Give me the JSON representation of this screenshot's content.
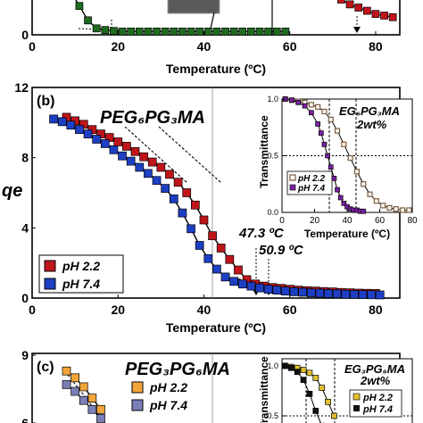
{
  "chart_data": [
    {
      "panel": "(a)",
      "type": "scatter",
      "xlabel": "Temperature (ºC)",
      "xlim": [
        0,
        85
      ],
      "ylim": [
        0,
        2.2
      ],
      "x_ticks": [
        "0",
        "20",
        "40",
        "60",
        "80"
      ],
      "y_ticks": [
        "0"
      ],
      "series": [
        {
          "color": "#1f6b1f",
          "x": [
            5,
            7,
            9,
            11,
            13,
            15,
            17,
            19,
            21,
            23,
            25,
            27,
            29,
            31,
            33,
            35,
            37,
            39,
            41,
            43,
            45,
            47,
            49,
            51,
            53,
            55,
            57,
            59
          ],
          "y": [
            2.2,
            1.8,
            1.35,
            0.9,
            0.45,
            0.2,
            0.15,
            0.12,
            0.1,
            0.1,
            0.1,
            0.1,
            0.1,
            0.1,
            0.1,
            0.1,
            0.1,
            0.1,
            0.1,
            0.1,
            0.1,
            0.1,
            0.1,
            0.1,
            0.1,
            0.1,
            0.1,
            0.1
          ]
        },
        {
          "color": "#c0141b",
          "x": [
            66,
            68,
            70,
            72,
            74,
            76,
            78,
            80,
            82,
            84
          ],
          "y": [
            1.9,
            1.6,
            1.35,
            1.1,
            0.95,
            0.85,
            0.75,
            0.65,
            0.6,
            0.55
          ]
        }
      ]
    },
    {
      "panel": "(b)",
      "type": "scatter",
      "title": "PEG₆PG₃MA",
      "xlabel": "Temperature (ºC)",
      "ylabel": "qe",
      "xlim": [
        0,
        85
      ],
      "ylim": [
        0,
        12
      ],
      "x_ticks": [
        "0",
        "20",
        "40",
        "60",
        "80"
      ],
      "y_ticks": [
        "0",
        "4",
        "8",
        "12"
      ],
      "legend": [
        "pH 2.2",
        "pH 7.4"
      ],
      "legend_position": "bottom-left",
      "annotations": [
        "47.3 ºC",
        "50.9 ºC"
      ],
      "series": [
        {
          "name": "pH 2.2",
          "color": "#c0141b",
          "x": [
            8,
            10,
            12,
            14,
            16,
            18,
            20,
            22,
            24,
            26,
            28,
            30,
            32,
            34,
            36,
            38,
            40,
            42,
            44,
            46,
            48,
            50,
            52,
            54,
            56,
            58,
            60,
            62,
            64,
            66,
            68,
            70,
            72,
            74,
            76,
            78,
            80
          ],
          "y": [
            10.3,
            10.1,
            9.9,
            9.6,
            9.35,
            9.15,
            8.9,
            8.65,
            8.35,
            8.05,
            7.75,
            7.45,
            7.05,
            6.6,
            6.0,
            5.3,
            4.45,
            3.55,
            2.85,
            2.2,
            1.6,
            1.05,
            0.8,
            0.68,
            0.6,
            0.55,
            0.5,
            0.45,
            0.42,
            0.4,
            0.37,
            0.35,
            0.32,
            0.3,
            0.28,
            0.27,
            0.26
          ]
        },
        {
          "name": "pH 7.4",
          "color": "#1d3fc4",
          "x": [
            5,
            7,
            9,
            11,
            13,
            15,
            17,
            19,
            21,
            23,
            25,
            27,
            29,
            31,
            33,
            35,
            37,
            39,
            41,
            43,
            45,
            47,
            49,
            51,
            53,
            55,
            57,
            59,
            61,
            63,
            65,
            67,
            69,
            71,
            73,
            75,
            77,
            79,
            81
          ],
          "y": [
            10.2,
            10.05,
            9.85,
            9.6,
            9.35,
            9.05,
            8.8,
            8.45,
            8.1,
            7.8,
            7.45,
            7.1,
            6.7,
            6.25,
            5.65,
            4.85,
            3.95,
            3.0,
            2.25,
            1.65,
            1.2,
            0.95,
            0.8,
            0.68,
            0.58,
            0.5,
            0.45,
            0.4,
            0.36,
            0.33,
            0.3,
            0.28,
            0.26,
            0.24,
            0.22,
            0.21,
            0.2,
            0.19,
            0.18
          ]
        }
      ]
    },
    {
      "panel": "(b) inset",
      "type": "scatter",
      "title": "EG₆PG₃MA",
      "subtitle": "2wt%",
      "xlabel": "Temperature (ºC)",
      "ylabel": "Transmittance",
      "xlim": [
        0,
        80
      ],
      "ylim": [
        0,
        1.0
      ],
      "x_ticks": [
        "0",
        "20",
        "40",
        "60",
        "80"
      ],
      "y_ticks": [
        "0.0",
        "0.5",
        "1.0"
      ],
      "legend": [
        "pH 2.2",
        "pH 7.4"
      ],
      "series": [
        {
          "name": "pH 2.2",
          "color": "#7a5a3a",
          "x": [
            2,
            6,
            10,
            14,
            18,
            22,
            26,
            30,
            34,
            38,
            42,
            46,
            50,
            54,
            58,
            62,
            66,
            70,
            74,
            78
          ],
          "y": [
            1.0,
            0.99,
            0.98,
            0.97,
            0.95,
            0.93,
            0.89,
            0.82,
            0.72,
            0.6,
            0.48,
            0.36,
            0.25,
            0.16,
            0.1,
            0.06,
            0.04,
            0.03,
            0.02,
            0.02
          ]
        },
        {
          "name": "pH 7.4",
          "color": "#7b1fa2",
          "x": [
            2,
            6,
            10,
            14,
            18,
            22,
            24,
            26,
            28,
            30,
            32,
            34,
            36,
            38,
            40,
            42,
            44,
            46,
            48,
            50
          ],
          "y": [
            1.0,
            0.99,
            0.97,
            0.94,
            0.88,
            0.78,
            0.7,
            0.6,
            0.5,
            0.4,
            0.3,
            0.2,
            0.13,
            0.08,
            0.05,
            0.03,
            0.02,
            0.02,
            0.01,
            0.01
          ]
        }
      ]
    },
    {
      "panel": "(c)",
      "type": "scatter",
      "title": "PEG₃PG₆MA",
      "ylim": [
        6,
        9
      ],
      "y_ticks": [
        "6",
        "9"
      ],
      "legend": [
        "pH 2.2",
        "pH 7.4"
      ],
      "series": [
        {
          "name": "pH 2.2",
          "color": "#f2a43a",
          "x": [
            8,
            10,
            12,
            14,
            16
          ],
          "y": [
            8.3,
            8.0,
            7.6,
            7.1,
            6.6
          ]
        },
        {
          "name": "pH 7.4",
          "color": "#7a7fb8",
          "x": [
            8,
            10,
            12,
            14,
            16
          ],
          "y": [
            7.7,
            7.4,
            7.0,
            6.6,
            6.2
          ]
        }
      ]
    },
    {
      "panel": "(c) inset",
      "type": "scatter",
      "title": "EG₃PG₆MA",
      "subtitle": "2wt%",
      "ylabel": "Transmittance",
      "y_ticks": [
        "0.5",
        "1.0"
      ],
      "legend": [
        "pH 2.2",
        "pH 7.4"
      ],
      "series": [
        {
          "name": "pH 2.2",
          "color": "#e0c030",
          "x": [
            2,
            6,
            10,
            14,
            18,
            22,
            26,
            30,
            34
          ],
          "y": [
            1.0,
            0.99,
            0.98,
            0.96,
            0.93,
            0.88,
            0.78,
            0.64,
            0.5
          ]
        },
        {
          "name": "pH 7.4",
          "color": "#111111",
          "x": [
            2,
            6,
            10,
            14,
            18,
            22,
            26
          ],
          "y": [
            1.0,
            0.98,
            0.94,
            0.86,
            0.72,
            0.55,
            0.4
          ]
        }
      ]
    }
  ]
}
